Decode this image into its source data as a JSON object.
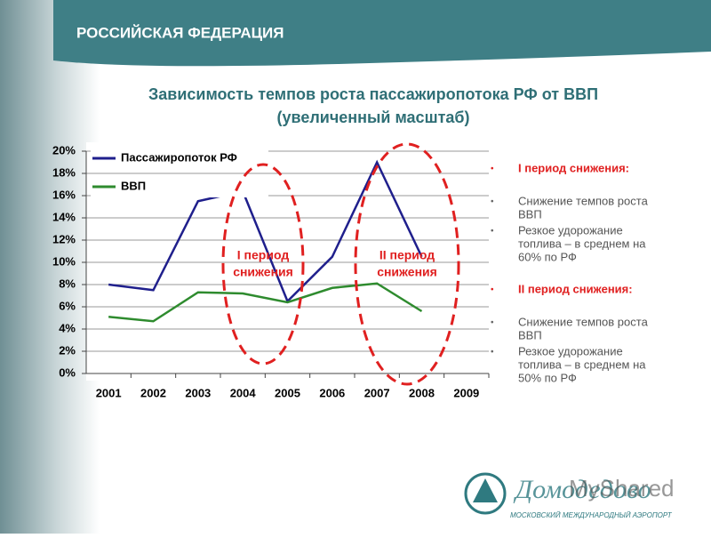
{
  "header": {
    "title": "РОССИЙСКАЯ ФЕДЕРАЦИЯ"
  },
  "chart_data": {
    "type": "line",
    "title": [
      "Зависимость темпов роста пассажиропотока РФ от ВВП",
      "(увеличенный масштаб)"
    ],
    "categories": [
      "2001",
      "2002",
      "2003",
      "2004",
      "2005",
      "2006",
      "2007",
      "2008",
      "2009"
    ],
    "series": [
      {
        "name": "Пассажиропоток РФ",
        "color": "#1f1f8c",
        "values": [
          8,
          7.5,
          15.5,
          16.4,
          6.5,
          10.5,
          19,
          10.5,
          null
        ]
      },
      {
        "name": "ВВП",
        "color": "#2e8b2e",
        "values": [
          5.1,
          4.7,
          7.3,
          7.2,
          6.4,
          7.7,
          8.1,
          5.6,
          null
        ]
      }
    ],
    "ylim": [
      0,
      20
    ],
    "yticks": [
      {
        "value": 0,
        "label": "0%"
      },
      {
        "value": 2,
        "label": "2%"
      },
      {
        "value": 4,
        "label": "4%"
      },
      {
        "value": 6,
        "label": "6%"
      },
      {
        "value": 8,
        "label": "8%"
      },
      {
        "value": 10,
        "label": "10%"
      },
      {
        "value": 12,
        "label": "12%"
      },
      {
        "value": 14,
        "label": "14%"
      },
      {
        "value": 16,
        "label": "16%"
      },
      {
        "value": 18,
        "label": "18%"
      },
      {
        "value": 20,
        "label": "20%"
      }
    ],
    "grid": true,
    "legend": "top-left",
    "annotations": [
      [
        "I период",
        "снижения"
      ],
      [
        "II период",
        "снижения"
      ]
    ]
  },
  "sidebar": {
    "sections": [
      {
        "heading": "I период снижения:",
        "items": [
          [
            "Снижение темпов роста",
            "ВВП"
          ],
          [
            "Резкое удорожание",
            "топлива – в среднем на",
            "60% по РФ"
          ]
        ]
      },
      {
        "heading": "II период снижения:",
        "items": [
          [
            "Снижение темпов роста",
            "ВВП"
          ],
          [
            "Резкое удорожание",
            "топлива – в среднем на",
            "50% по РФ"
          ]
        ]
      }
    ]
  },
  "logo": {
    "name": "Домодедово",
    "subtitle": "МОСКОВСКИЙ МЕЖДУНАРОДНЫЙ АЭРОПОРТ",
    "watermark": "MyShared"
  }
}
